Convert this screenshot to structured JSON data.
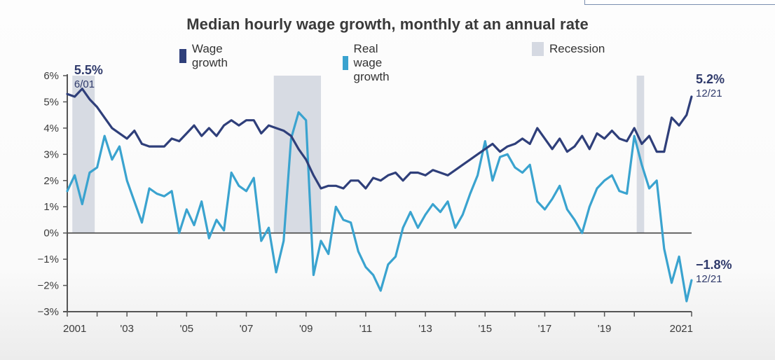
{
  "chart_data": {
    "type": "line",
    "title": "Median hourly wage growth, monthly at an annual rate",
    "xlabel": "",
    "ylabel": "",
    "x_range": [
      2001.0,
      2021.9167
    ],
    "ylim": [
      -3,
      6
    ],
    "y_ticks": [
      6,
      5,
      4,
      3,
      2,
      1,
      0,
      -1,
      -2,
      -3
    ],
    "y_tick_labels": [
      "6%",
      "5%",
      "4%",
      "3%",
      "2%",
      "1%",
      "0%",
      "−1%",
      "−2%",
      "−3%"
    ],
    "x_ticks": [
      2001,
      2003,
      2005,
      2007,
      2009,
      2011,
      2013,
      2015,
      2017,
      2019,
      2021
    ],
    "x_tick_labels": [
      "2001",
      "'03",
      "'05",
      "'07",
      "'09",
      "'11",
      "'13",
      "'15",
      "'17",
      "'19",
      "2021"
    ],
    "x_minor_ticks": [
      2002,
      2004,
      2006,
      2008,
      2010,
      2012,
      2014,
      2016,
      2018,
      2020
    ],
    "grid": false,
    "legend_position": "top",
    "legend": [
      {
        "name": "Wage growth",
        "color": "#2f3f7a",
        "kind": "line"
      },
      {
        "name": "Real wage growth",
        "color": "#3aa3cf",
        "kind": "line"
      },
      {
        "name": "Recession",
        "color": "#d5d9e2",
        "kind": "band"
      }
    ],
    "x": [
      2001.0,
      2001.25,
      2001.5,
      2001.75,
      2002.0,
      2002.25,
      2002.5,
      2002.75,
      2003.0,
      2003.25,
      2003.5,
      2003.75,
      2004.0,
      2004.25,
      2004.5,
      2004.75,
      2005.0,
      2005.25,
      2005.5,
      2005.75,
      2006.0,
      2006.25,
      2006.5,
      2006.75,
      2007.0,
      2007.25,
      2007.5,
      2007.75,
      2008.0,
      2008.25,
      2008.5,
      2008.75,
      2009.0,
      2009.25,
      2009.5,
      2009.75,
      2010.0,
      2010.25,
      2010.5,
      2010.75,
      2011.0,
      2011.25,
      2011.5,
      2011.75,
      2012.0,
      2012.25,
      2012.5,
      2012.75,
      2013.0,
      2013.25,
      2013.5,
      2013.75,
      2014.0,
      2014.25,
      2014.5,
      2014.75,
      2015.0,
      2015.25,
      2015.5,
      2015.75,
      2016.0,
      2016.25,
      2016.5,
      2016.75,
      2017.0,
      2017.25,
      2017.5,
      2017.75,
      2018.0,
      2018.25,
      2018.5,
      2018.75,
      2019.0,
      2019.25,
      2019.5,
      2019.75,
      2020.0,
      2020.25,
      2020.5,
      2020.75,
      2021.0,
      2021.25,
      2021.5,
      2021.75,
      2021.9167
    ],
    "series": [
      {
        "name": "Wage growth",
        "color": "#2f3f7a",
        "values": [
          5.3,
          5.2,
          5.5,
          5.1,
          4.8,
          4.4,
          4.0,
          3.8,
          3.6,
          3.9,
          3.4,
          3.3,
          3.3,
          3.3,
          3.6,
          3.5,
          3.8,
          4.1,
          3.7,
          4.0,
          3.7,
          4.1,
          4.3,
          4.1,
          4.3,
          4.3,
          3.8,
          4.1,
          4.0,
          3.9,
          3.7,
          3.2,
          2.8,
          2.2,
          1.7,
          1.8,
          1.8,
          1.7,
          2.0,
          2.0,
          1.7,
          2.1,
          2.0,
          2.2,
          2.3,
          2.0,
          2.3,
          2.3,
          2.2,
          2.4,
          2.3,
          2.2,
          2.4,
          2.6,
          2.8,
          3.0,
          3.2,
          3.4,
          3.1,
          3.3,
          3.4,
          3.6,
          3.4,
          4.0,
          3.6,
          3.2,
          3.6,
          3.1,
          3.3,
          3.7,
          3.2,
          3.8,
          3.6,
          3.9,
          3.6,
          3.5,
          4.0,
          3.4,
          3.7,
          3.1,
          3.1,
          4.4,
          4.1,
          4.5,
          5.2
        ]
      },
      {
        "name": "Real wage growth",
        "color": "#3aa3cf",
        "values": [
          1.6,
          2.2,
          1.1,
          2.3,
          2.5,
          3.7,
          2.8,
          3.3,
          2.0,
          1.2,
          0.4,
          1.7,
          1.5,
          1.4,
          1.6,
          0.0,
          0.9,
          0.3,
          1.2,
          -0.2,
          0.5,
          0.1,
          2.3,
          1.8,
          1.6,
          2.1,
          -0.3,
          0.2,
          -1.5,
          -0.3,
          3.6,
          4.6,
          4.3,
          -1.6,
          -0.3,
          -0.8,
          1.0,
          0.5,
          0.4,
          -0.7,
          -1.3,
          -1.6,
          -2.2,
          -1.2,
          -0.9,
          0.2,
          0.8,
          0.2,
          0.7,
          1.1,
          0.8,
          1.2,
          0.2,
          0.7,
          1.5,
          2.2,
          3.5,
          2.0,
          2.9,
          3.0,
          2.5,
          2.3,
          2.6,
          1.2,
          0.9,
          1.3,
          1.8,
          0.9,
          0.5,
          0.0,
          1.0,
          1.7,
          2.0,
          2.2,
          1.6,
          1.5,
          3.7,
          2.6,
          1.7,
          2.0,
          -0.6,
          -1.9,
          -0.9,
          -2.6,
          -1.8
        ]
      }
    ],
    "recessions": [
      {
        "start": 2001.17,
        "end": 2001.92
      },
      {
        "start": 2007.92,
        "end": 2009.5
      },
      {
        "start": 2020.08,
        "end": 2020.33
      }
    ],
    "annotations": [
      {
        "id": "wage-peak",
        "value": "5.5%",
        "date": "6/01",
        "x": 2001.42,
        "y": 5.5,
        "anchor": "top"
      },
      {
        "id": "wage-latest",
        "value": "5.2%",
        "date": "12/21",
        "x": 2021.9167,
        "y": 5.2,
        "anchor": "right"
      },
      {
        "id": "real-latest",
        "value": "−1.8%",
        "date": "12/21",
        "x": 2021.9167,
        "y": -1.8,
        "anchor": "right"
      }
    ]
  }
}
